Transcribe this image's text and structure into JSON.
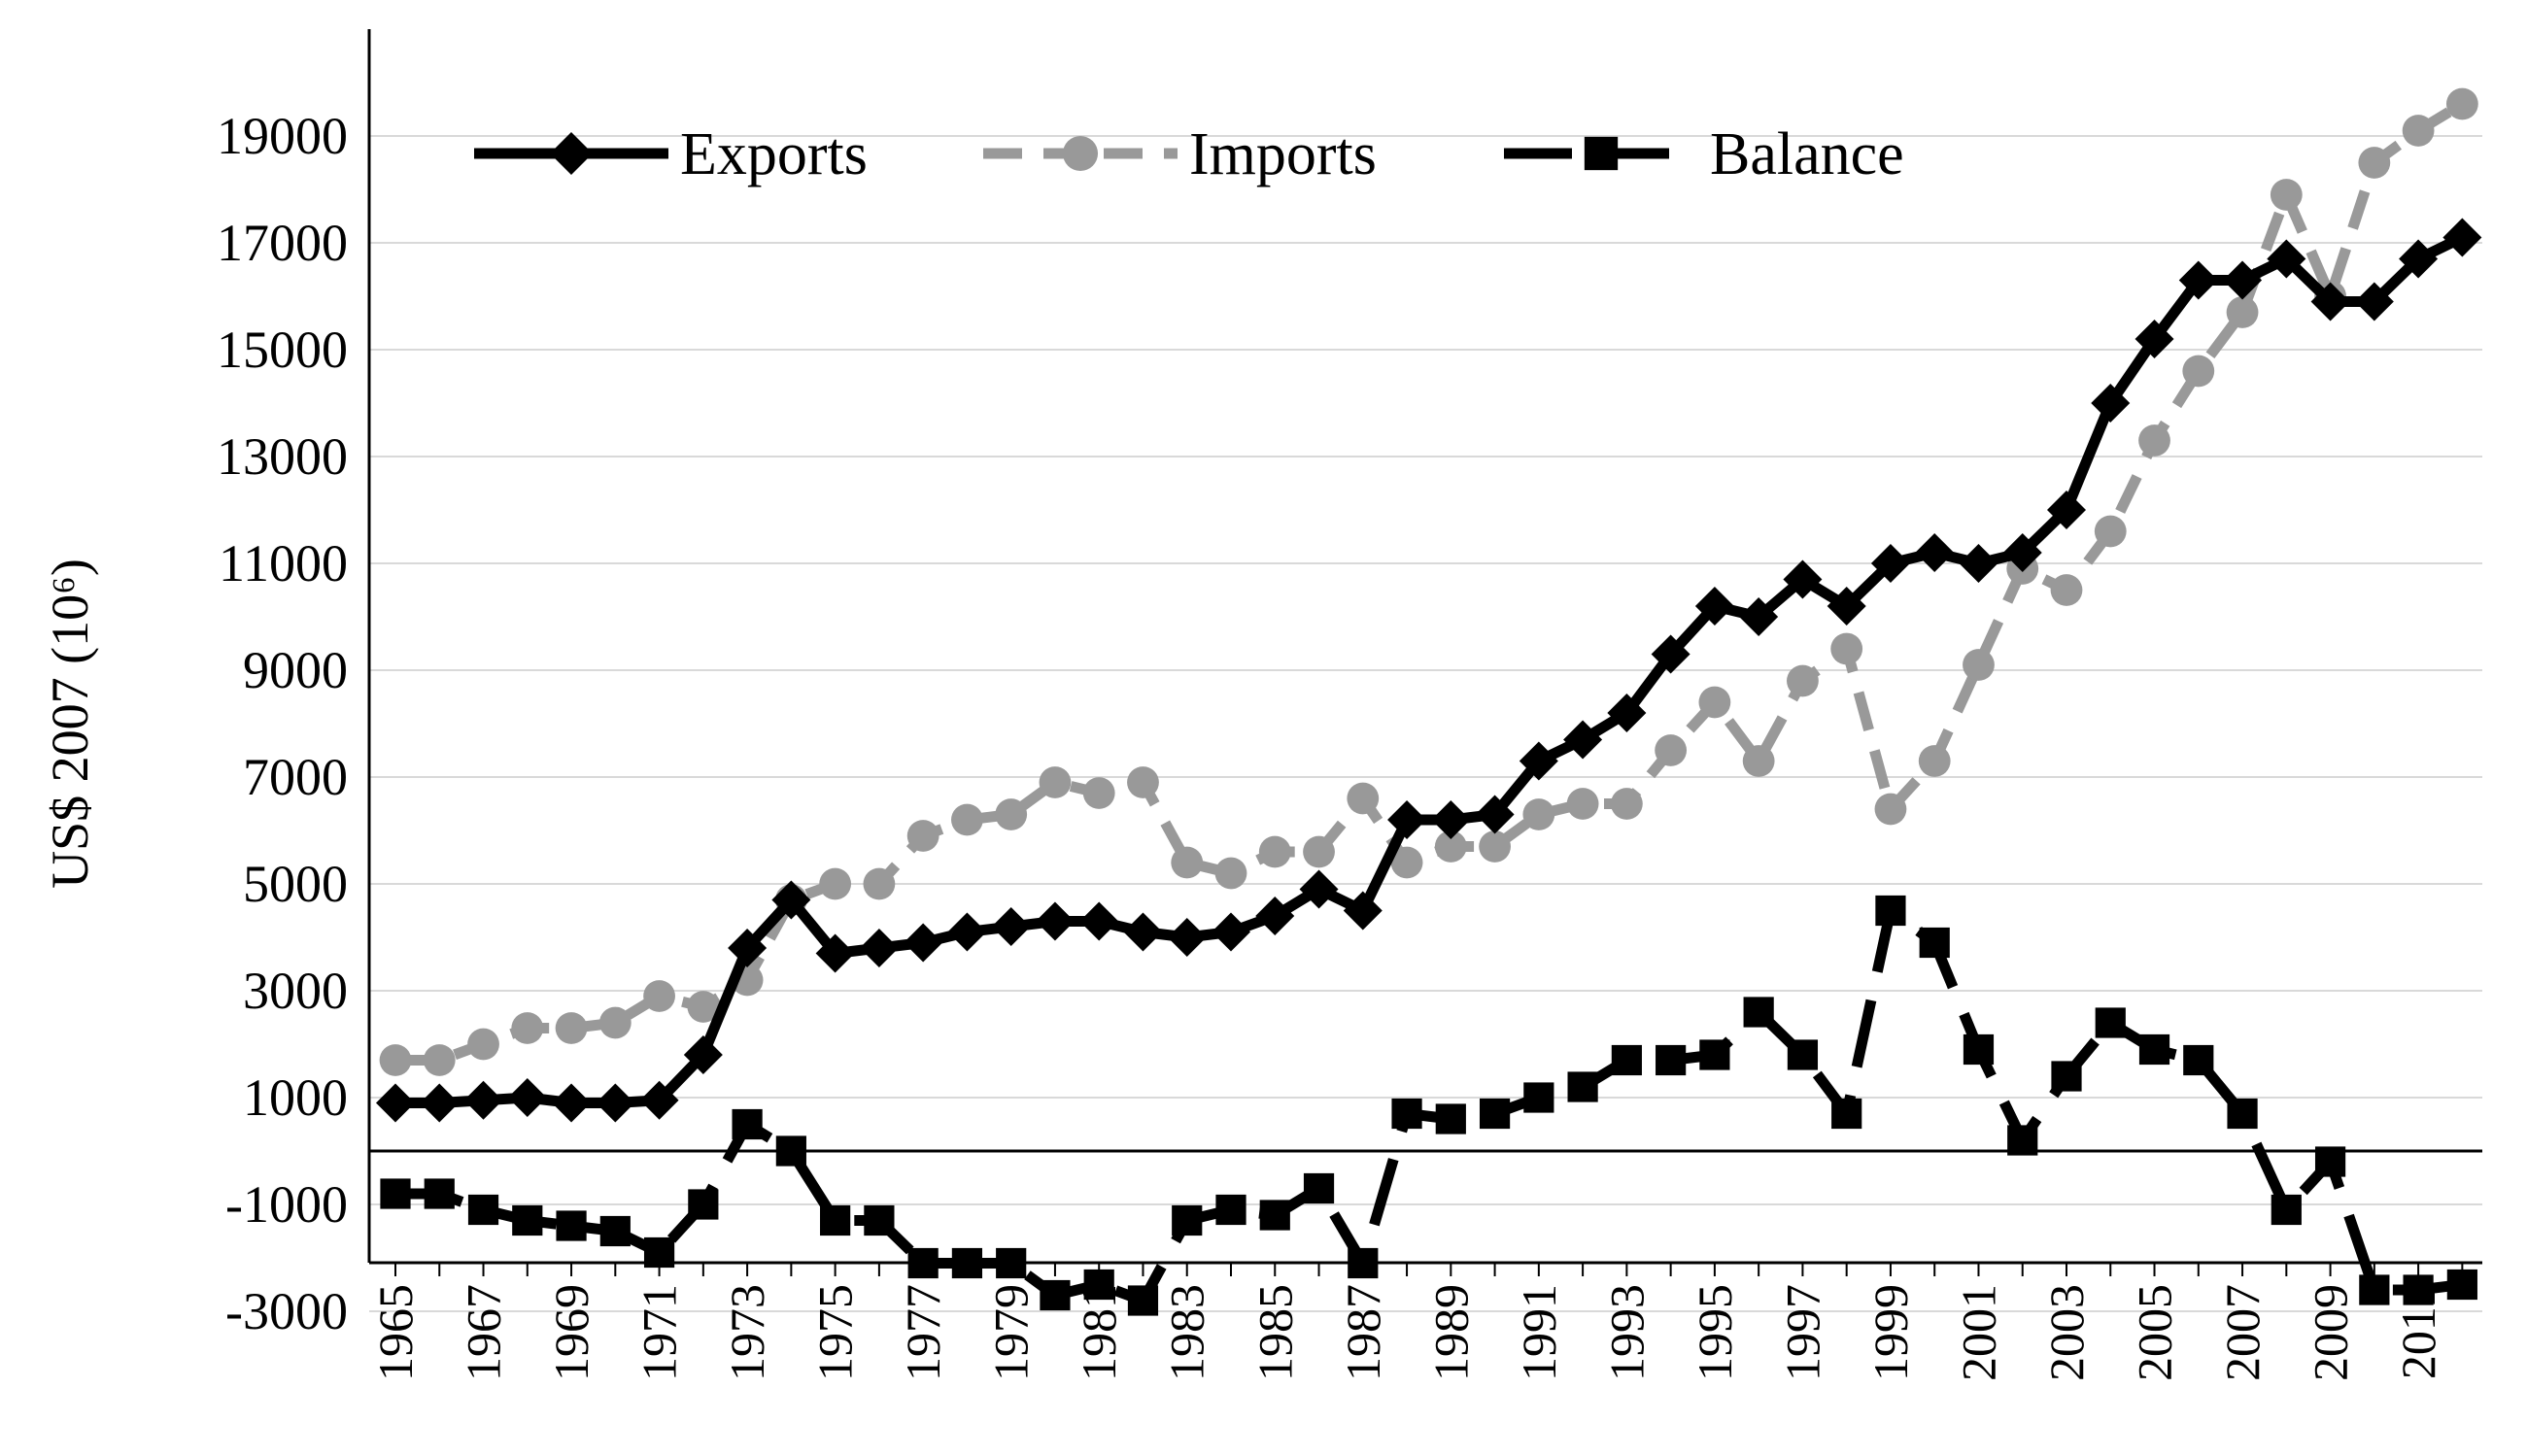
{
  "chart_data": {
    "type": "line",
    "title": "",
    "xlabel": "",
    "ylabel": "US$ 2007 (10⁶)",
    "ylim": [
      -3000,
      20000
    ],
    "y_ticks": [
      "19000",
      "17000",
      "15000",
      "13000",
      "11000",
      "9000",
      "7000",
      "5000",
      "3000",
      "1000",
      "-1000",
      "-3000"
    ],
    "x_tick_labels": [
      "1965",
      "1967",
      "1969",
      "1971",
      "1973",
      "1975",
      "1977",
      "1979",
      "1981",
      "1983",
      "1985",
      "1987",
      "1989",
      "1991",
      "1993",
      "1995",
      "1997",
      "1999",
      "2001",
      "2003",
      "2005",
      "2007",
      "2009",
      "2011"
    ],
    "x": [
      1965,
      1966,
      1967,
      1968,
      1969,
      1970,
      1971,
      1972,
      1973,
      1974,
      1975,
      1976,
      1977,
      1978,
      1979,
      1980,
      1981,
      1982,
      1983,
      1984,
      1985,
      1986,
      1987,
      1988,
      1989,
      1990,
      1991,
      1992,
      1993,
      1994,
      1995,
      1996,
      1997,
      1998,
      1999,
      2000,
      2001,
      2002,
      2003,
      2004,
      2005,
      2006,
      2007,
      2008,
      2009,
      2010,
      2011,
      2012
    ],
    "legend_position": "top-left",
    "series": [
      {
        "name": "Exports",
        "color": "#000000",
        "marker": "diamond",
        "dash": "solid",
        "values": [
          900,
          900,
          950,
          1000,
          900,
          900,
          950,
          1800,
          3800,
          4700,
          3700,
          3800,
          3900,
          4100,
          4200,
          4300,
          4300,
          4100,
          4000,
          4100,
          4400,
          4900,
          4500,
          6200,
          6200,
          6300,
          7300,
          7700,
          8200,
          9300,
          10200,
          10000,
          10700,
          10200,
          11000,
          11200,
          11000,
          11200,
          12000,
          14000,
          15200,
          16300,
          16300,
          16700,
          15900,
          15900,
          16700,
          17100
        ]
      },
      {
        "name": "Imports",
        "color": "#999999",
        "marker": "circle",
        "dash": "dashed",
        "values": [
          1700,
          1700,
          2000,
          2300,
          2300,
          2400,
          2900,
          2700,
          3200,
          4700,
          5000,
          5000,
          5900,
          6200,
          6300,
          6900,
          6700,
          6900,
          5400,
          5200,
          5600,
          5600,
          6600,
          5400,
          5700,
          5700,
          6300,
          6500,
          6500,
          7500,
          8400,
          7300,
          8800,
          9400,
          6400,
          7300,
          9100,
          10900,
          10500,
          11600,
          13300,
          14600,
          15700,
          17900,
          16000,
          18500,
          19100,
          19600
        ]
      },
      {
        "name": "Balance",
        "color": "#000000",
        "marker": "square",
        "dash": "long-dash",
        "values": [
          -800,
          -800,
          -1100,
          -1300,
          -1400,
          -1500,
          -1900,
          -1000,
          500,
          0,
          -1300,
          -1300,
          -2100,
          -2100,
          -2100,
          -2700,
          -2500,
          -2800,
          -1300,
          -1100,
          -1200,
          -700,
          -2100,
          700,
          600,
          700,
          1000,
          1200,
          1700,
          1700,
          1800,
          2600,
          1800,
          700,
          4500,
          3900,
          1900,
          200,
          1400,
          2400,
          1900,
          1700,
          700,
          -1100,
          -200,
          -2600,
          -2600,
          -2500
        ]
      }
    ]
  }
}
